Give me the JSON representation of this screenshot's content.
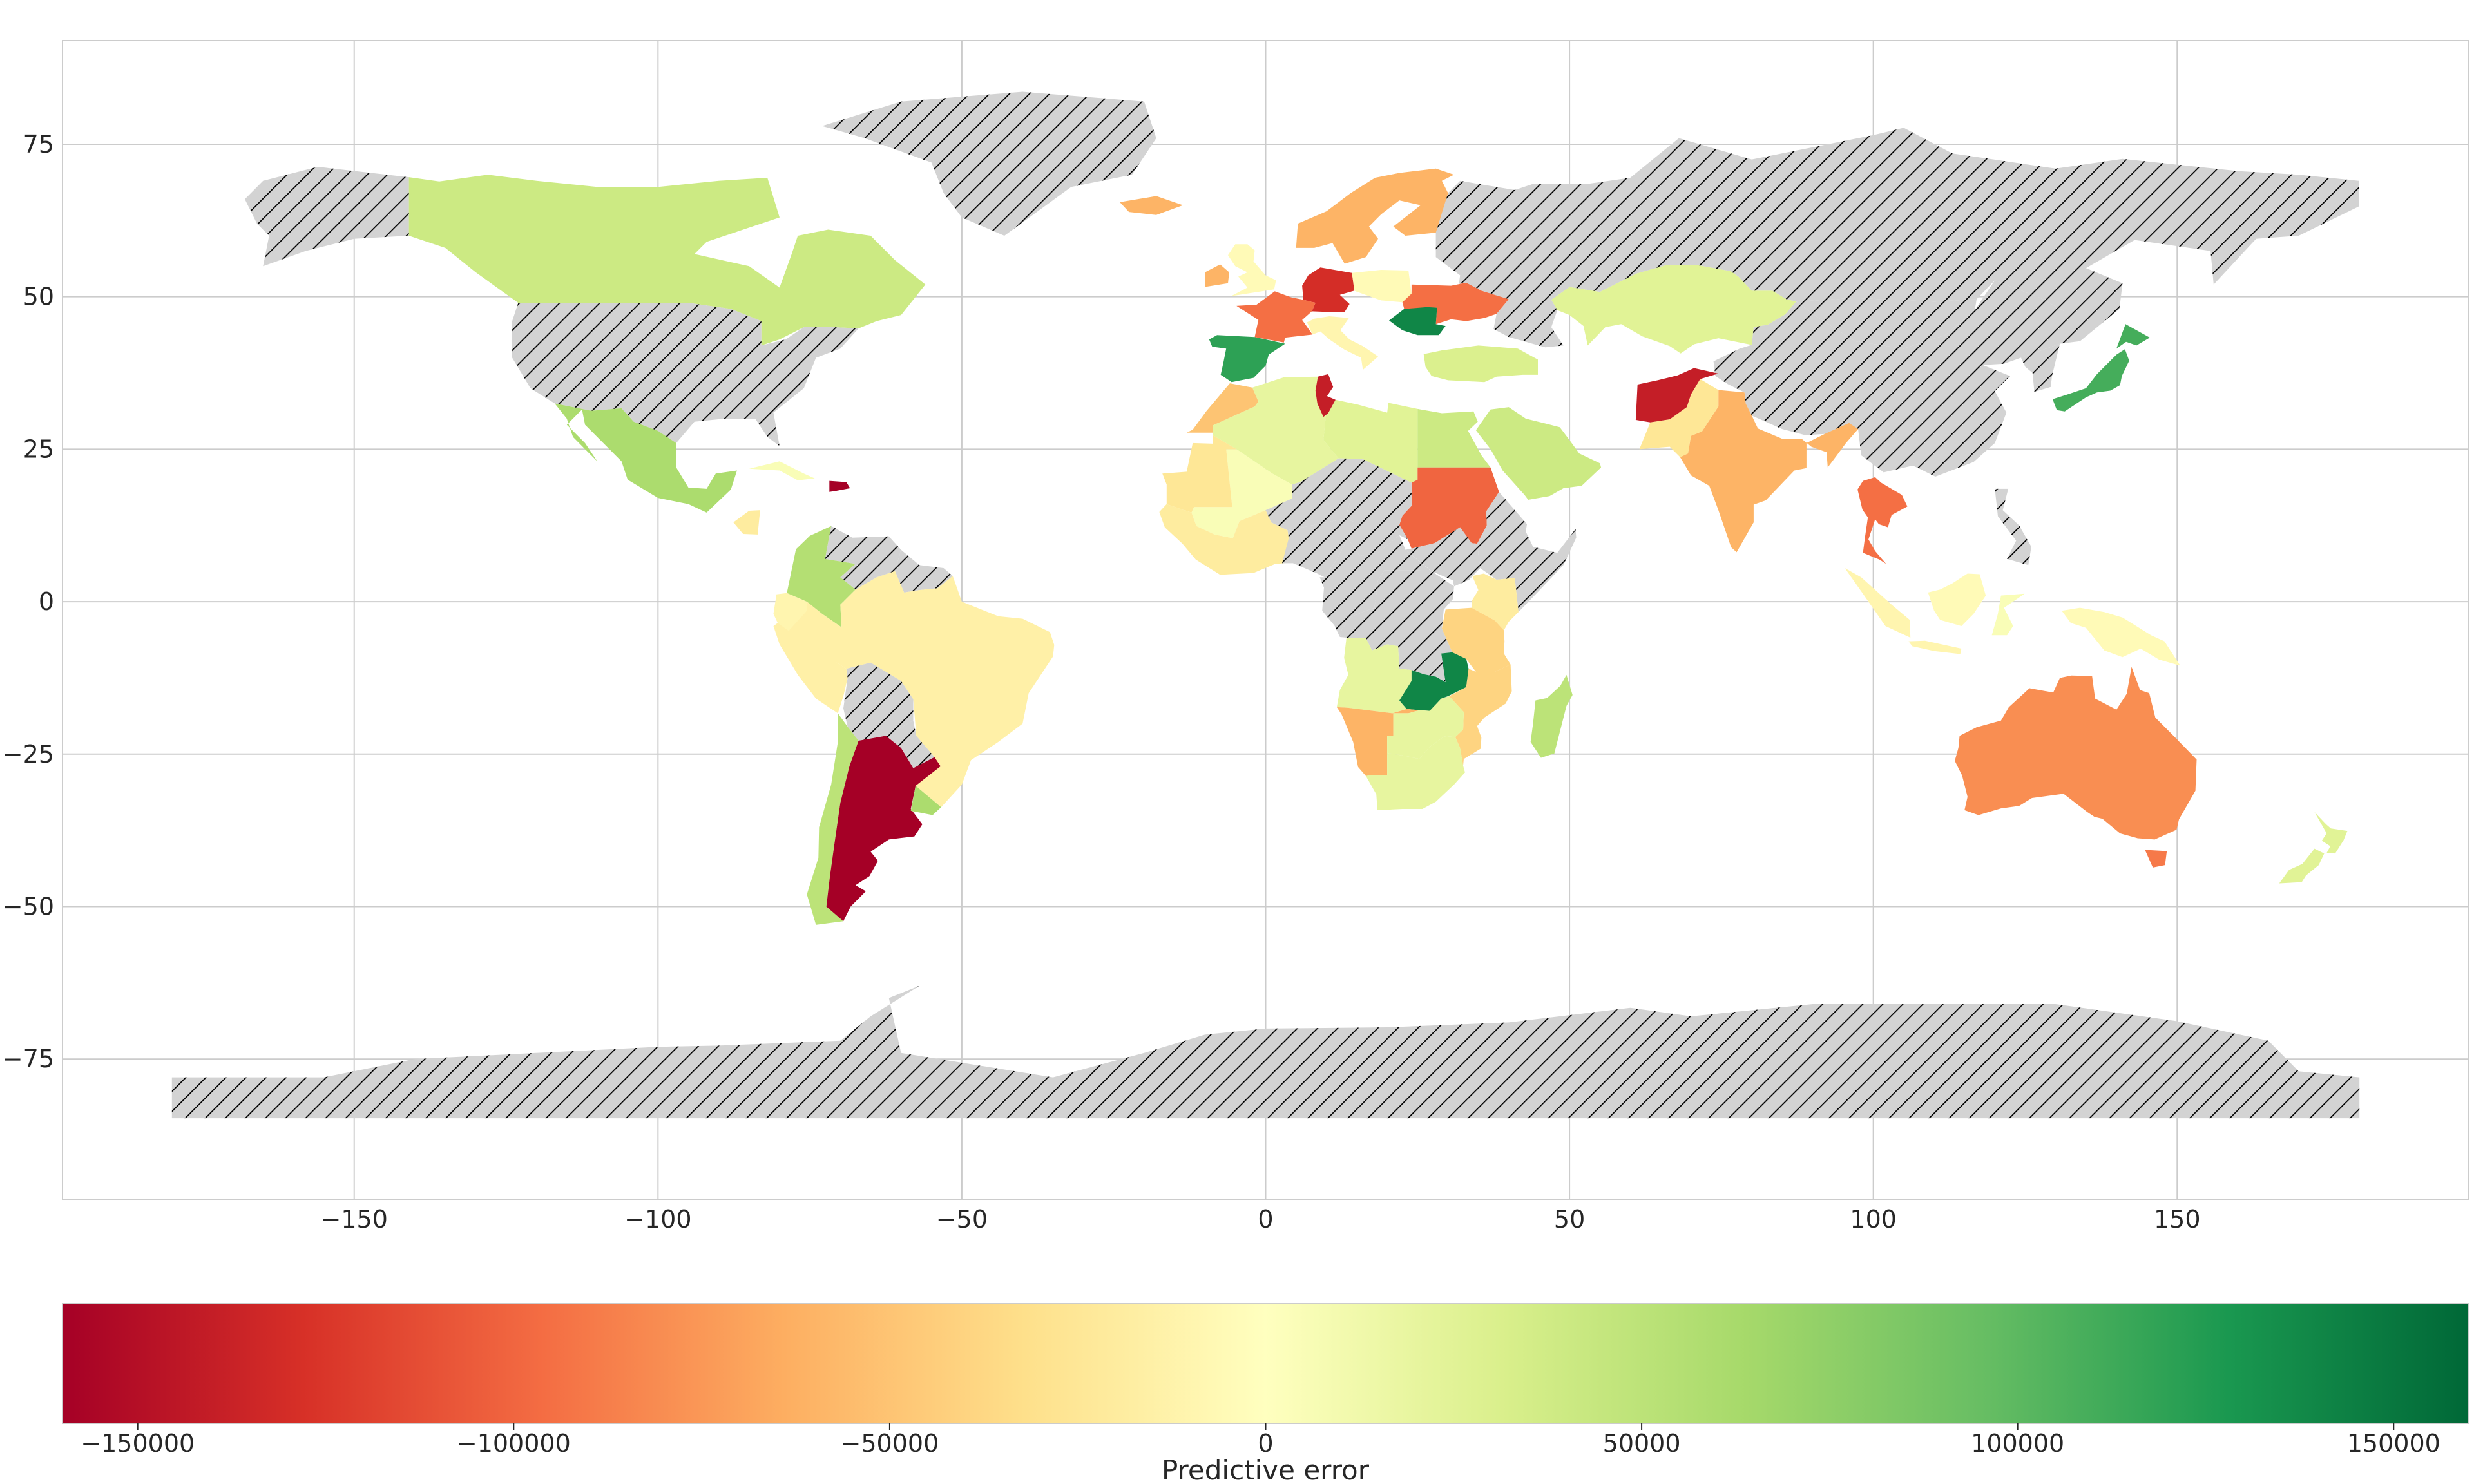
{
  "chart_data": {
    "type": "choropleth",
    "xlim": [
      -198,
      198
    ],
    "ylim": [
      -98,
      92
    ],
    "xticks": [
      -150,
      -100,
      -50,
      0,
      50,
      100,
      150
    ],
    "yticks": [
      75,
      50,
      25,
      0,
      -25,
      -50,
      -75
    ],
    "xtick_labels": [
      "−150",
      "−100",
      "−50",
      "0",
      "50",
      "100",
      "150"
    ],
    "ytick_labels": [
      "75",
      "50",
      "25",
      "0",
      "−25",
      "−50",
      "−75"
    ],
    "grid": true,
    "no_data_style": "hatched grey",
    "colorbar": {
      "label": "Predictive error",
      "range": [
        -160000,
        160000
      ],
      "ticks": [
        -150000,
        -100000,
        -50000,
        0,
        50000,
        100000,
        150000
      ],
      "tick_labels": [
        "−150000",
        "−100000",
        "−50000",
        "0",
        "50000",
        "100000",
        "150000"
      ],
      "colormap": "RdYlGn",
      "colors": [
        "#a50026",
        "#d73027",
        "#f46d43",
        "#fdae61",
        "#fee08b",
        "#ffffbf",
        "#d9ef8b",
        "#a6d96a",
        "#66bd63",
        "#1a9850",
        "#006837"
      ]
    },
    "regions": [
      {
        "name": "Canada",
        "value": 40000
      },
      {
        "name": "Greenland",
        "value": null
      },
      {
        "name": "Alaska",
        "value": null
      },
      {
        "name": "United States",
        "value": null
      },
      {
        "name": "Mexico",
        "value": 60000
      },
      {
        "name": "Cuba",
        "value": 5000
      },
      {
        "name": "Dominican Republic",
        "value": -160000
      },
      {
        "name": "Nicaragua",
        "value": -20000
      },
      {
        "name": "Colombia",
        "value": 55000
      },
      {
        "name": "Venezuela",
        "value": null
      },
      {
        "name": "Peru",
        "value": -15000
      },
      {
        "name": "Brazil",
        "value": -15000
      },
      {
        "name": "Bolivia",
        "value": null
      },
      {
        "name": "Paraguay",
        "value": null
      },
      {
        "name": "Chile",
        "value": 50000
      },
      {
        "name": "Argentina",
        "value": -160000
      },
      {
        "name": "Uruguay",
        "value": 60000
      },
      {
        "name": "Iceland",
        "value": -60000
      },
      {
        "name": "Ireland",
        "value": -60000
      },
      {
        "name": "United Kingdom",
        "value": -5000
      },
      {
        "name": "Scandinavia",
        "value": -60000
      },
      {
        "name": "Germany",
        "value": -130000
      },
      {
        "name": "France",
        "value": -95000
      },
      {
        "name": "Spain",
        "value": 120000
      },
      {
        "name": "Italy",
        "value": -10000
      },
      {
        "name": "Poland",
        "value": -5000
      },
      {
        "name": "Ukraine",
        "value": -95000
      },
      {
        "name": "Romania",
        "value": 140000
      },
      {
        "name": "Turkey",
        "value": 30000
      },
      {
        "name": "Kazakhstan",
        "value": 25000
      },
      {
        "name": "Russia",
        "value": null
      },
      {
        "name": "China",
        "value": null
      },
      {
        "name": "Japan",
        "value": 110000
      },
      {
        "name": "India",
        "value": -60000
      },
      {
        "name": "Pakistan",
        "value": -25000
      },
      {
        "name": "Afghanistan",
        "value": -140000
      },
      {
        "name": "Thailand",
        "value": -95000
      },
      {
        "name": "Indonesia",
        "value": -10000
      },
      {
        "name": "Morocco",
        "value": -50000
      },
      {
        "name": "Algeria",
        "value": 20000
      },
      {
        "name": "Tunisia",
        "value": -140000
      },
      {
        "name": "Libya",
        "value": 25000
      },
      {
        "name": "Egypt",
        "value": 40000
      },
      {
        "name": "Sudan",
        "value": -100000
      },
      {
        "name": "Saudi Arabia",
        "value": 40000
      },
      {
        "name": "Mali",
        "value": 5000
      },
      {
        "name": "Mauritania",
        "value": -25000
      },
      {
        "name": "Nigeria",
        "value": null
      },
      {
        "name": "DR Congo",
        "value": null
      },
      {
        "name": "Kenya",
        "value": -20000
      },
      {
        "name": "Angola",
        "value": 20000
      },
      {
        "name": "Zambia",
        "value": 140000
      },
      {
        "name": "Namibia",
        "value": -60000
      },
      {
        "name": "South Africa",
        "value": 20000
      },
      {
        "name": "Madagascar",
        "value": 50000
      },
      {
        "name": "Australia",
        "value": -80000
      },
      {
        "name": "New Zealand",
        "value": 25000
      },
      {
        "name": "Antarctica",
        "value": null
      }
    ]
  }
}
